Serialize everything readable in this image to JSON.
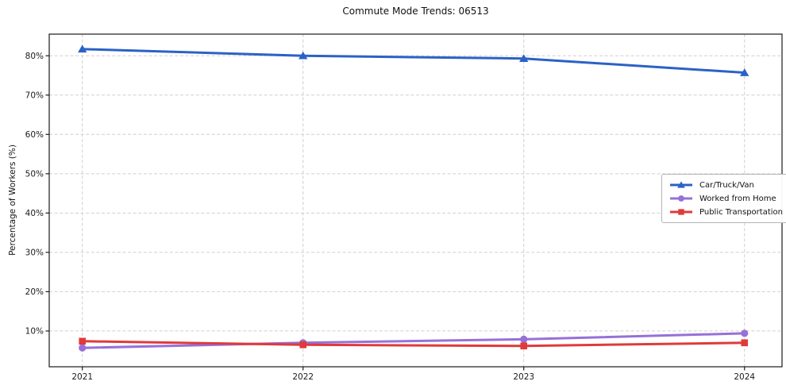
{
  "chart_data": {
    "type": "line",
    "title": "Commute Mode Trends: 06513",
    "xlabel": "",
    "ylabel": "Percentage of Workers (%)",
    "x": [
      2021,
      2022,
      2023,
      2024
    ],
    "xtick_labels": [
      "2021",
      "2022",
      "2023",
      "2024"
    ],
    "series": [
      {
        "name": "Car/Truck/Van",
        "marker": "triangle",
        "color": "#2b62c6",
        "values": [
          81.7,
          80.0,
          79.3,
          75.7
        ]
      },
      {
        "name": "Worked from Home",
        "marker": "circle",
        "color": "#9671d8",
        "values": [
          5.7,
          7.0,
          7.9,
          9.4
        ]
      },
      {
        "name": "Public Transportation",
        "marker": "square",
        "color": "#e03a3a",
        "values": [
          7.4,
          6.5,
          6.2,
          7.0
        ]
      }
    ],
    "yticks": [
      10,
      20,
      30,
      40,
      50,
      60,
      70,
      80
    ],
    "ytick_suffix": "%",
    "ylim": [
      0.9,
      85.5
    ],
    "xlim": [
      2020.85,
      2024.17
    ],
    "grid": true,
    "grid_style": "dashed",
    "legend_position": "middle-right"
  },
  "colors": {
    "grid": "#cfcfcf",
    "axis": "#1a1a1a",
    "text": "#1a1a1a",
    "background": "#ffffff"
  }
}
